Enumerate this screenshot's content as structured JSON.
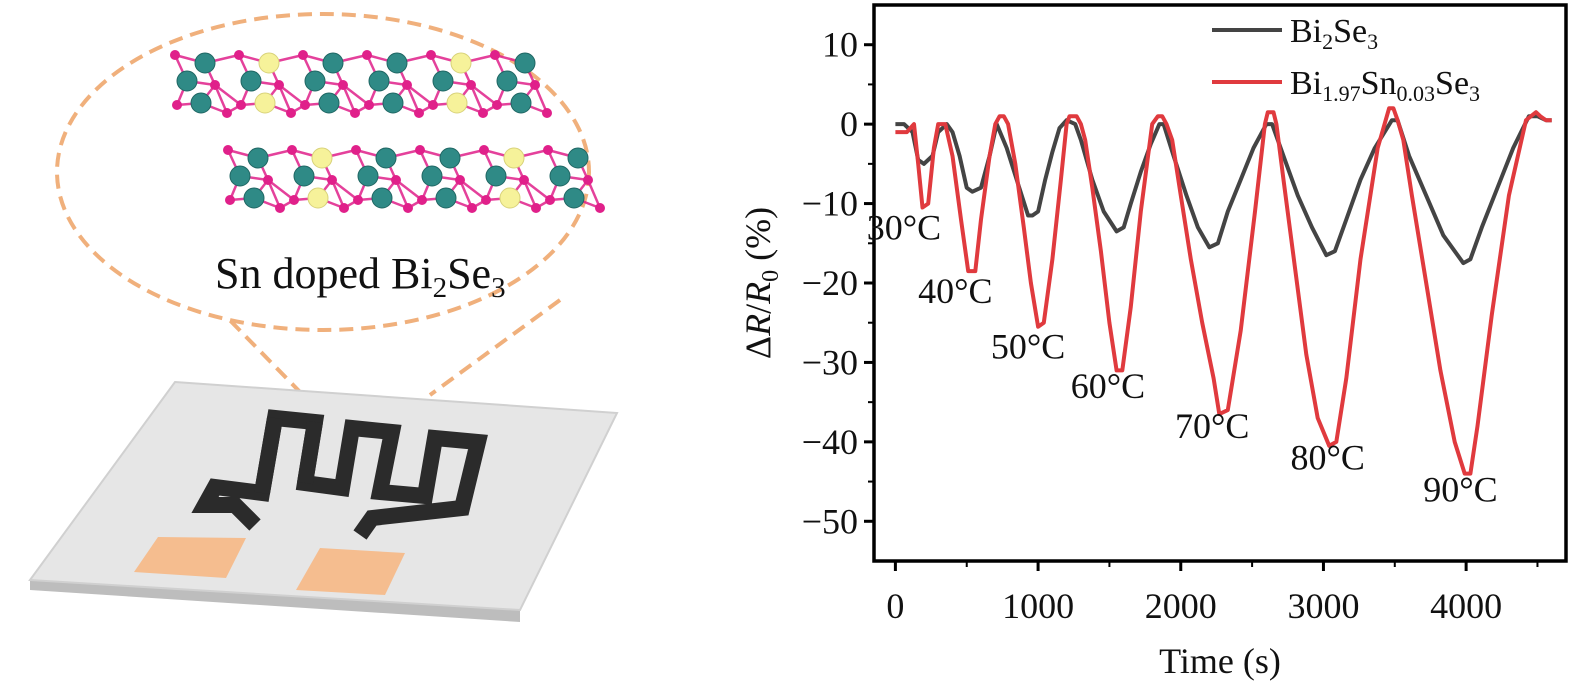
{
  "illustration": {
    "caption_main": "Sn doped Bi",
    "caption_sub1": "2",
    "caption_mid": "Se",
    "caption_sub2": "3",
    "colors": {
      "bubble": "#f0b07c",
      "bi_atom": "#2f8a86",
      "se_atom": "#e0208a",
      "sn_atom": "#f6f29a",
      "pad": "#f5bd8f",
      "electrode": "#2b2b2b"
    }
  },
  "chart_data": {
    "type": "line",
    "xlabel": "Time (s)",
    "ylabel_delta": "Δ",
    "ylabel_r": "R",
    "ylabel_slash": "/",
    "ylabel_r0": "R",
    "ylabel_sub": "0",
    "ylabel_unit": " (%)",
    "xlim": [
      -150,
      4700
    ],
    "ylim": [
      -55,
      15
    ],
    "x_ticks": [
      0,
      1000,
      2000,
      3000,
      4000
    ],
    "x_tick_labels": [
      "0",
      "1000",
      "2000",
      "3000",
      "4000"
    ],
    "y_ticks": [
      10,
      0,
      -10,
      -20,
      -30,
      -40,
      -50
    ],
    "y_tick_labels": [
      "10",
      "0",
      "−10",
      "−20",
      "−30",
      "−40",
      "−50"
    ],
    "legend_position": "top-right",
    "series": [
      {
        "name": "Bi2Se3",
        "name_parts": [
          "Bi",
          "2",
          "Se",
          "3",
          "",
          ""
        ],
        "color": "#444444",
        "x": [
          0,
          60,
          120,
          160,
          200,
          260,
          300,
          360,
          400,
          450,
          500,
          540,
          600,
          660,
          710,
          780,
          850,
          930,
          960,
          1000,
          1050,
          1100,
          1150,
          1200,
          1260,
          1300,
          1380,
          1460,
          1550,
          1600,
          1650,
          1720,
          1790,
          1850,
          1880,
          1950,
          2040,
          2120,
          2200,
          2260,
          2330,
          2420,
          2510,
          2600,
          2640,
          2730,
          2820,
          2920,
          3020,
          3080,
          3160,
          3260,
          3360,
          3480,
          3520,
          3600,
          3720,
          3840,
          3980,
          4030,
          4110,
          4220,
          4330,
          4440,
          4500,
          4560,
          4600
        ],
        "y": [
          0,
          0,
          -1,
          -4.5,
          -5,
          -4,
          -1,
          0,
          -1,
          -4,
          -8,
          -8.5,
          -8,
          -4,
          0,
          -3,
          -7,
          -11.5,
          -11.5,
          -11,
          -7,
          -3.5,
          -0.5,
          0.5,
          0,
          -2,
          -7,
          -11,
          -13.5,
          -13,
          -10,
          -6,
          -2.5,
          0,
          0,
          -4,
          -9,
          -13,
          -15.5,
          -15,
          -11,
          -7,
          -3,
          0,
          0,
          -4.5,
          -9,
          -13,
          -16.5,
          -16,
          -12,
          -7,
          -3,
          0.5,
          0.5,
          -4,
          -9,
          -14,
          -17.5,
          -17,
          -13,
          -8,
          -3,
          1,
          1,
          0.5,
          0.5
        ]
      },
      {
        "name": "Bi1.97Sn0.03Se3",
        "name_parts": [
          "Bi",
          "1.97",
          "Sn",
          "0.03",
          "Se",
          "3"
        ],
        "color": "#e03a3e",
        "x": [
          0,
          80,
          130,
          160,
          190,
          230,
          270,
          300,
          320,
          350,
          400,
          460,
          510,
          560,
          600,
          660,
          700,
          730,
          760,
          790,
          840,
          900,
          950,
          1000,
          1040,
          1100,
          1160,
          1200,
          1220,
          1270,
          1300,
          1330,
          1380,
          1440,
          1500,
          1550,
          1590,
          1650,
          1720,
          1800,
          1840,
          1870,
          1900,
          1940,
          2000,
          2070,
          2150,
          2230,
          2270,
          2330,
          2420,
          2520,
          2590,
          2610,
          2650,
          2670,
          2720,
          2800,
          2880,
          2960,
          3040,
          3090,
          3160,
          3260,
          3380,
          3460,
          3490,
          3520,
          3560,
          3620,
          3720,
          3820,
          3920,
          3990,
          4030,
          4080,
          4180,
          4300,
          4420,
          4490,
          4520,
          4560,
          4600
        ],
        "y": [
          -1,
          -1,
          0,
          -5,
          -10.5,
          -10,
          -3,
          0,
          0,
          0,
          -4,
          -12,
          -18.5,
          -18.5,
          -12,
          -4,
          0,
          1,
          1,
          0,
          -5,
          -13,
          -20,
          -25.5,
          -25,
          -17,
          -7,
          0,
          1,
          1,
          0,
          -2,
          -8,
          -16,
          -25,
          -31,
          -31,
          -23,
          -11,
          0,
          1,
          1,
          0,
          -2,
          -9,
          -17,
          -25,
          -32,
          -36.5,
          -36,
          -26,
          -11,
          0,
          1.5,
          1.5,
          0,
          -7,
          -18,
          -29,
          -37,
          -40.5,
          -40,
          -32,
          -17,
          -3,
          2,
          2,
          0.5,
          -2,
          -9,
          -20,
          -31,
          -40,
          -44,
          -44,
          -38,
          -24,
          -9,
          0.5,
          1.5,
          1,
          0.5,
          0.5
        ]
      }
    ],
    "annotations": [
      {
        "text": "30°C",
        "x": 60,
        "y": -14.5
      },
      {
        "text": "40°C",
        "x": 420,
        "y": -22.5
      },
      {
        "text": "50°C",
        "x": 930,
        "y": -29.5
      },
      {
        "text": "60°C",
        "x": 1490,
        "y": -34.5
      },
      {
        "text": "70°C",
        "x": 2220,
        "y": -39.5
      },
      {
        "text": "80°C",
        "x": 3030,
        "y": -43.5
      },
      {
        "text": "90°C",
        "x": 3960,
        "y": -47.5
      }
    ]
  }
}
